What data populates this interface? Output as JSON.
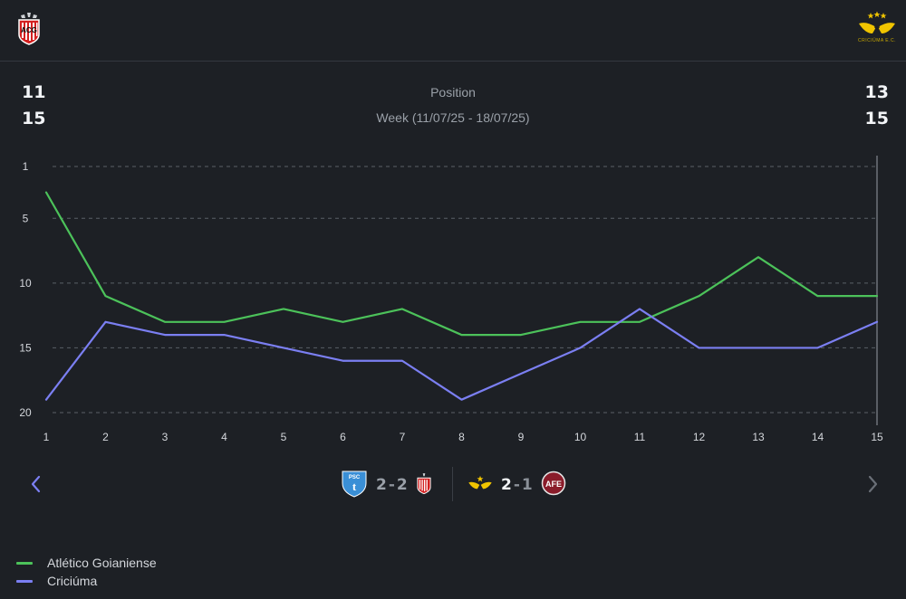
{
  "teams": {
    "home": {
      "name": "Atlético Goianiense",
      "logo_icon": "atletico-goianiense-crest",
      "color": "#4cc25a"
    },
    "away": {
      "name": "Criciúma",
      "logo_icon": "criciuma-crest",
      "logo_subtext": "CRICIÚMA E.C.",
      "color": "#7b7ff2"
    }
  },
  "summary": {
    "title": "Position",
    "week_label": "Week (11/07/25 - 18/07/25)",
    "home_position": "11",
    "home_week_position": "15",
    "away_position": "13",
    "away_week_position": "15"
  },
  "chart_data": {
    "type": "line",
    "x": [
      1,
      2,
      3,
      4,
      5,
      6,
      7,
      8,
      9,
      10,
      11,
      12,
      13,
      14,
      15
    ],
    "series": [
      {
        "name": "Atlético Goianiense",
        "color": "#4cc25a",
        "values": [
          3,
          11,
          13,
          13,
          12,
          13,
          12,
          14,
          14,
          13,
          13,
          11,
          8,
          11,
          11
        ]
      },
      {
        "name": "Criciúma",
        "color": "#7b7ff2",
        "values": [
          19,
          13,
          14,
          14,
          15,
          16,
          16,
          19,
          17,
          15,
          12,
          15,
          15,
          15,
          13
        ]
      }
    ],
    "yticks": [
      1,
      5,
      10,
      15,
      20
    ],
    "ylim": [
      1,
      20
    ],
    "y_inverted": true,
    "grid": true,
    "highlight_round": 15,
    "legend_position": "bottom-left"
  },
  "matches": {
    "home_match": {
      "home_team_icon": "paysandu-crest",
      "home_score": "2",
      "separator": "-",
      "away_score": "2",
      "away_team_icon": "atletico-goianiense-crest"
    },
    "away_match": {
      "home_team_icon": "criciuma-crest",
      "home_score": "2",
      "separator": "-",
      "away_score": "1",
      "away_team_icon": "ferroviaria-crest"
    }
  },
  "nav": {
    "prev_icon": "chevron-left-icon",
    "next_icon": "chevron-right-icon"
  }
}
